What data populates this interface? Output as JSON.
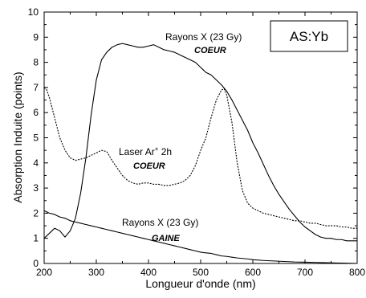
{
  "chart_data": {
    "type": "line",
    "xlabel": "Longueur d'onde (nm)",
    "ylabel": "Absorption Induite (points)",
    "xlim": [
      200,
      800
    ],
    "ylim": [
      0,
      10
    ],
    "x_ticks": [
      "200",
      "300",
      "400",
      "500",
      "600",
      "700",
      "800"
    ],
    "y_ticks": [
      "0",
      "1",
      "2",
      "3",
      "4",
      "5",
      "6",
      "7",
      "8",
      "9",
      "10"
    ],
    "grid": false,
    "box_label": "AS:Yb",
    "annotations": [
      {
        "id": "xray-core",
        "lines": [
          "Rayons X (23 Gy)",
          "COEUR"
        ]
      },
      {
        "id": "laser-core",
        "lines": [
          "Laser Ar",
          "+",
          " 2h",
          "COEUR"
        ]
      },
      {
        "id": "xray-clad",
        "lines": [
          "Rayons X (23 Gy)",
          "GAINE"
        ]
      }
    ],
    "series": [
      {
        "id": "xray_core",
        "style": "solid",
        "x": [
          200,
          210,
          220,
          230,
          240,
          250,
          260,
          270,
          280,
          290,
          300,
          310,
          320,
          330,
          340,
          350,
          360,
          370,
          380,
          390,
          400,
          410,
          420,
          430,
          440,
          450,
          460,
          470,
          480,
          490,
          500,
          510,
          520,
          530,
          540,
          550,
          560,
          570,
          580,
          590,
          600,
          610,
          620,
          630,
          640,
          650,
          660,
          670,
          680,
          690,
          700,
          710,
          720,
          730,
          740,
          750,
          760,
          770,
          780,
          790,
          800
        ],
        "y": [
          1.0,
          1.2,
          1.4,
          1.3,
          1.05,
          1.3,
          1.8,
          2.8,
          4.2,
          5.9,
          7.3,
          8.1,
          8.4,
          8.6,
          8.7,
          8.75,
          8.7,
          8.65,
          8.6,
          8.6,
          8.65,
          8.7,
          8.6,
          8.5,
          8.45,
          8.4,
          8.3,
          8.2,
          8.1,
          8.0,
          7.8,
          7.6,
          7.5,
          7.3,
          7.1,
          6.85,
          6.5,
          6.1,
          5.7,
          5.3,
          4.8,
          4.4,
          3.95,
          3.5,
          3.1,
          2.75,
          2.45,
          2.15,
          1.9,
          1.65,
          1.45,
          1.3,
          1.15,
          1.05,
          1.0,
          1.0,
          0.95,
          0.95,
          0.9,
          0.9,
          0.9
        ]
      },
      {
        "id": "laser_core",
        "style": "dashed",
        "x": [
          200,
          205,
          210,
          220,
          230,
          240,
          250,
          260,
          270,
          280,
          290,
          300,
          310,
          320,
          330,
          340,
          350,
          360,
          370,
          380,
          390,
          400,
          410,
          420,
          430,
          440,
          450,
          460,
          470,
          480,
          490,
          500,
          510,
          520,
          530,
          540,
          545,
          550,
          560,
          570,
          580,
          590,
          600,
          610,
          620,
          630,
          640,
          650,
          660,
          670,
          680,
          690,
          700,
          710,
          720,
          730,
          740,
          750,
          760,
          770,
          780,
          790,
          800
        ],
        "y": [
          7.0,
          6.9,
          6.6,
          5.8,
          5.0,
          4.5,
          4.2,
          4.1,
          4.15,
          4.2,
          4.3,
          4.4,
          4.5,
          4.45,
          4.1,
          3.8,
          3.5,
          3.3,
          3.2,
          3.15,
          3.2,
          3.2,
          3.15,
          3.15,
          3.1,
          3.1,
          3.15,
          3.2,
          3.3,
          3.5,
          3.9,
          4.5,
          5.0,
          5.8,
          6.5,
          6.9,
          6.95,
          6.7,
          5.6,
          4.0,
          2.9,
          2.4,
          2.2,
          2.1,
          2.0,
          1.95,
          1.9,
          1.85,
          1.8,
          1.75,
          1.7,
          1.7,
          1.65,
          1.6,
          1.6,
          1.55,
          1.5,
          1.5,
          1.5,
          1.45,
          1.45,
          1.4,
          1.4
        ]
      },
      {
        "id": "xray_clad",
        "style": "solid",
        "x": [
          200,
          210,
          220,
          230,
          240,
          250,
          260,
          270,
          280,
          290,
          300,
          310,
          320,
          330,
          340,
          350,
          360,
          370,
          380,
          390,
          400,
          410,
          420,
          430,
          440,
          450,
          460,
          470,
          480,
          490,
          500,
          510,
          520,
          530,
          540,
          550,
          560,
          570,
          580,
          590,
          600,
          620,
          640,
          660,
          680,
          700,
          720,
          740,
          760,
          780,
          800
        ],
        "y": [
          2.1,
          2.0,
          1.95,
          1.85,
          1.8,
          1.7,
          1.65,
          1.6,
          1.55,
          1.5,
          1.45,
          1.4,
          1.35,
          1.3,
          1.25,
          1.2,
          1.15,
          1.1,
          1.05,
          1.0,
          0.95,
          0.9,
          0.85,
          0.8,
          0.75,
          0.7,
          0.65,
          0.6,
          0.55,
          0.5,
          0.45,
          0.42,
          0.4,
          0.35,
          0.3,
          0.28,
          0.25,
          0.22,
          0.2,
          0.18,
          0.15,
          0.12,
          0.1,
          0.08,
          0.06,
          0.05,
          0.04,
          0.03,
          0.02,
          0.01,
          0.0
        ]
      }
    ]
  }
}
